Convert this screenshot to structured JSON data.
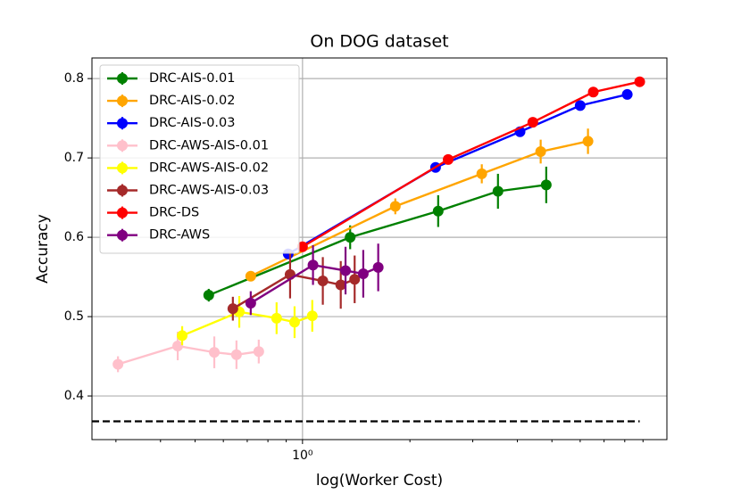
{
  "chart_data": {
    "type": "line",
    "title": "On DOG dataset",
    "x_label": "log(Worker Cost)",
    "y_label": "Accuracy",
    "xscale": "log",
    "xlim": [
      0.257,
      10.5
    ],
    "ylim": [
      0.345,
      0.826
    ],
    "xticks": [
      {
        "value": 1,
        "label": "10⁰"
      }
    ],
    "xminor_ticks": [
      0.3,
      0.4,
      0.5,
      0.6,
      0.7,
      0.8,
      0.9,
      2,
      3,
      4,
      5,
      6,
      7,
      8,
      9
    ],
    "yticks": [
      0.4,
      0.5,
      0.6,
      0.7,
      0.8
    ],
    "grid": true,
    "legend": "upper left",
    "reference_line": {
      "y": 0.368,
      "color": "#000000"
    },
    "series": [
      {
        "name": "DRC-AIS-0.01",
        "color": "green",
        "x": [
          0.546,
          1.36,
          2.4,
          3.53,
          4.82
        ],
        "values": [
          0.527,
          0.6,
          0.633,
          0.658,
          0.666
        ],
        "errors": [
          0.008,
          0.015,
          0.02,
          0.022,
          0.023
        ]
      },
      {
        "name": "DRC-AIS-0.02",
        "color": "orange",
        "x": [
          0.716,
          1.82,
          3.18,
          4.65,
          6.31
        ],
        "values": [
          0.551,
          0.639,
          0.68,
          0.708,
          0.721
        ],
        "errors": [
          0.005,
          0.01,
          0.012,
          0.015,
          0.016
        ]
      },
      {
        "name": "DRC-AIS-0.03",
        "color": "blue",
        "x": [
          0.912,
          2.36,
          4.07,
          6.0,
          8.13
        ],
        "values": [
          0.579,
          0.688,
          0.733,
          0.766,
          0.78
        ],
        "errors": [
          0.005,
          0.005,
          0.005,
          0.005,
          0.006
        ]
      },
      {
        "name": "DRC-AWS-AIS-0.01",
        "color": "pink",
        "x": [
          0.304,
          0.447,
          0.566,
          0.653,
          0.754
        ],
        "values": [
          0.44,
          0.463,
          0.455,
          0.452,
          0.456
        ],
        "errors": [
          0.01,
          0.018,
          0.02,
          0.018,
          0.015
        ]
      },
      {
        "name": "DRC-AWS-AIS-0.02",
        "color": "yellow",
        "x": [
          0.46,
          0.665,
          0.846,
          0.95,
          1.065
        ],
        "values": [
          0.476,
          0.506,
          0.498,
          0.493,
          0.501
        ],
        "errors": [
          0.012,
          0.02,
          0.02,
          0.02,
          0.02
        ]
      },
      {
        "name": "DRC-AWS-AIS-0.03",
        "color": "brown",
        "x": [
          0.638,
          0.923,
          1.14,
          1.28,
          1.4
        ],
        "values": [
          0.51,
          0.553,
          0.545,
          0.54,
          0.547
        ],
        "errors": [
          0.015,
          0.03,
          0.03,
          0.03,
          0.03
        ]
      },
      {
        "name": "DRC-DS",
        "color": "red",
        "x": [
          1.0,
          2.56,
          4.42,
          6.53,
          8.81
        ],
        "values": [
          0.588,
          0.698,
          0.745,
          0.783,
          0.796
        ],
        "errors": [
          0.004,
          0.003,
          0.003,
          0.003,
          0.003
        ]
      },
      {
        "name": "DRC-AWS",
        "color": "purple",
        "x": [
          0.716,
          1.07,
          1.32,
          1.48,
          1.63
        ],
        "values": [
          0.517,
          0.565,
          0.558,
          0.554,
          0.562
        ],
        "errors": [
          0.015,
          0.025,
          0.03,
          0.03,
          0.03
        ]
      }
    ]
  }
}
